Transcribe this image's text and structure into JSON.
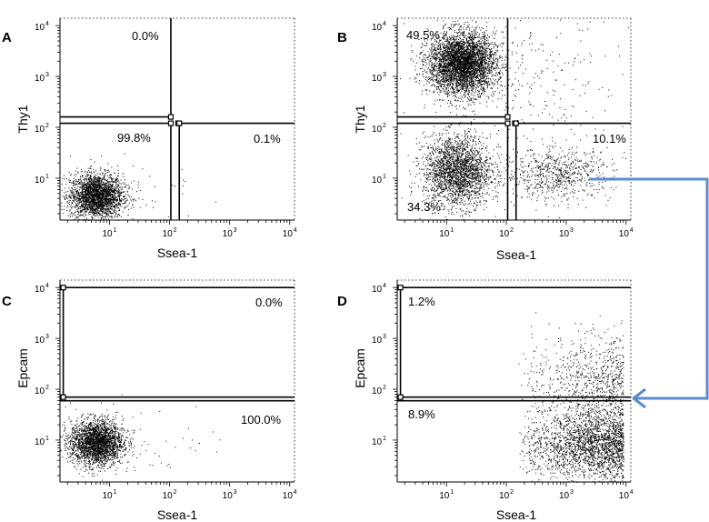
{
  "arrow_color": "#5B8DCB",
  "chart_data": [
    {
      "id": "A",
      "type": "scatter",
      "panel_letter": "A",
      "xlabel": "Ssea-1",
      "ylabel": "Thy1",
      "xscale": "log",
      "yscale": "log",
      "xlim": [
        1.5,
        12000
      ],
      "ylim": [
        1.5,
        14000
      ],
      "x_tick_labels": [
        {
          "base": "10",
          "exp": "1"
        },
        {
          "base": "10",
          "exp": "2"
        },
        {
          "base": "10",
          "exp": "3"
        },
        {
          "base": "10",
          "exp": "4"
        }
      ],
      "y_tick_labels": [
        {
          "base": "10",
          "exp": "1"
        },
        {
          "base": "10",
          "exp": "2"
        },
        {
          "base": "10",
          "exp": "3"
        },
        {
          "base": "10",
          "exp": "4"
        }
      ],
      "gates": {
        "y_split_left": 160,
        "x_split_top": 105,
        "x_split_bottom": 145,
        "y_split_right": 120
      },
      "quadrants": [
        {
          "name": "upper-left",
          "label": "0.0%"
        },
        {
          "name": "lower-left",
          "label": "99.8%"
        },
        {
          "name": "lower-right",
          "label": "0.1%"
        }
      ],
      "populations": [
        {
          "x_center": 6,
          "y_center": 4.5,
          "x_spread_log": 0.22,
          "y_spread_log": 0.22,
          "n_points": 2600
        },
        {
          "x_center": 30,
          "y_center": 6,
          "x_spread_log": 0.5,
          "y_spread_log": 0.4,
          "n_points": 40
        }
      ]
    },
    {
      "id": "B",
      "type": "scatter",
      "panel_letter": "B",
      "xlabel": "Ssea-1",
      "ylabel": "Thy1",
      "xscale": "log",
      "yscale": "log",
      "xlim": [
        1.5,
        12000
      ],
      "ylim": [
        1.5,
        14000
      ],
      "x_tick_labels": [
        {
          "base": "10",
          "exp": "1"
        },
        {
          "base": "10",
          "exp": "2"
        },
        {
          "base": "10",
          "exp": "3"
        },
        {
          "base": "10",
          "exp": "4"
        }
      ],
      "y_tick_labels": [
        {
          "base": "10",
          "exp": "1"
        },
        {
          "base": "10",
          "exp": "2"
        },
        {
          "base": "10",
          "exp": "3"
        },
        {
          "base": "10",
          "exp": "4"
        }
      ],
      "gates": {
        "y_split_left": 160,
        "x_split_top": 105,
        "x_split_bottom": 145,
        "y_split_right": 120
      },
      "quadrants": [
        {
          "name": "upper-left",
          "label": "49.5%"
        },
        {
          "name": "lower-left",
          "label": "34.3%"
        },
        {
          "name": "lower-right",
          "label": "10.1%"
        }
      ],
      "populations": [
        {
          "x_center": 18,
          "y_center": 1800,
          "x_spread_log": 0.28,
          "y_spread_log": 0.3,
          "n_points": 4200
        },
        {
          "x_center": 15,
          "y_center": 14,
          "x_spread_log": 0.28,
          "y_spread_log": 0.35,
          "n_points": 2400
        },
        {
          "x_center": 700,
          "y_center": 12,
          "x_spread_log": 0.45,
          "y_spread_log": 0.25,
          "n_points": 700
        },
        {
          "x_center": 200,
          "y_center": 500,
          "x_spread_log": 0.9,
          "y_spread_log": 0.9,
          "n_points": 350
        }
      ]
    },
    {
      "id": "C",
      "type": "scatter",
      "panel_letter": "C",
      "xlabel": "Ssea-1",
      "ylabel": "Epcam",
      "xscale": "log",
      "yscale": "log",
      "xlim": [
        1.5,
        12000
      ],
      "ylim": [
        1.5,
        14000
      ],
      "x_tick_labels": [
        {
          "base": "10",
          "exp": "1"
        },
        {
          "base": "10",
          "exp": "2"
        },
        {
          "base": "10",
          "exp": "3"
        },
        {
          "base": "10",
          "exp": "4"
        }
      ],
      "y_tick_labels": [
        {
          "base": "10",
          "exp": "1"
        },
        {
          "base": "10",
          "exp": "2"
        },
        {
          "base": "10",
          "exp": "3"
        },
        {
          "base": "10",
          "exp": "4"
        }
      ],
      "gates": {
        "x_gate_min": 1.7,
        "y_top": 10000,
        "y_split": 70
      },
      "quadrants": [
        {
          "name": "upper",
          "label": "0.0%"
        },
        {
          "name": "lower",
          "label": "100.0%"
        }
      ],
      "populations": [
        {
          "x_center": 6,
          "y_center": 9,
          "x_spread_log": 0.22,
          "y_spread_log": 0.22,
          "n_points": 2600
        },
        {
          "x_center": 60,
          "y_center": 10,
          "x_spread_log": 0.6,
          "y_spread_log": 0.4,
          "n_points": 45
        }
      ]
    },
    {
      "id": "D",
      "type": "scatter",
      "panel_letter": "D",
      "xlabel": "Ssea-1",
      "ylabel": "Epcam",
      "xscale": "log",
      "yscale": "log",
      "xlim": [
        1.5,
        12000
      ],
      "ylim": [
        1.5,
        14000
      ],
      "x_tick_labels": [
        {
          "base": "10",
          "exp": "1"
        },
        {
          "base": "10",
          "exp": "2"
        },
        {
          "base": "10",
          "exp": "3"
        },
        {
          "base": "10",
          "exp": "4"
        }
      ],
      "y_tick_labels": [
        {
          "base": "10",
          "exp": "1"
        },
        {
          "base": "10",
          "exp": "2"
        },
        {
          "base": "10",
          "exp": "3"
        },
        {
          "base": "10",
          "exp": "4"
        }
      ],
      "gates": {
        "x_gate_min": 1.7,
        "y_top": 10000,
        "y_split": 70
      },
      "quadrants": [
        {
          "name": "upper",
          "label": "1.2%"
        },
        {
          "name": "lower",
          "label": "8.9%"
        }
      ],
      "populations": [
        {
          "x_min": 150,
          "x_max": 9000,
          "y_center": 8,
          "x_spread_log": 0,
          "y_spread_log": 0.35,
          "n_points": 2300
        },
        {
          "x_min": 150,
          "x_max": 9000,
          "y_center": 150,
          "x_spread_log": 0,
          "y_spread_log": 0.45,
          "n_points": 800
        }
      ]
    }
  ]
}
